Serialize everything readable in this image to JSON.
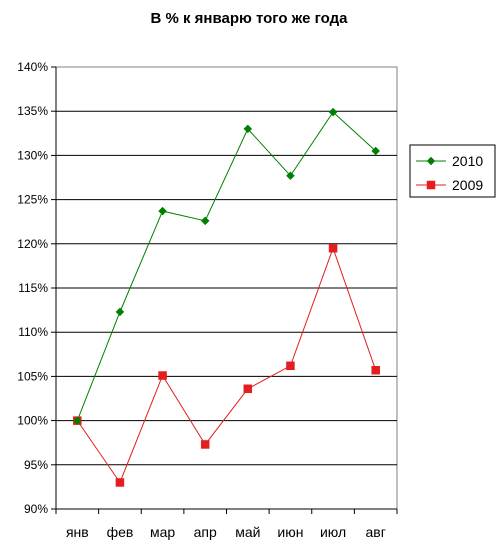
{
  "chart_data": {
    "type": "line",
    "title": "В % к январю того же года",
    "xlabel": "",
    "ylabel": "",
    "categories": [
      "янв",
      "фев",
      "мар",
      "апр",
      "май",
      "июн",
      "июл",
      "авг"
    ],
    "ylim": [
      90,
      140
    ],
    "ytick_step": 5,
    "ytick_labels": [
      "90%",
      "95%",
      "100%",
      "105%",
      "110%",
      "115%",
      "120%",
      "125%",
      "130%",
      "135%",
      "140%"
    ],
    "grid": true,
    "legend_position": "right",
    "series": [
      {
        "name": "2010",
        "color": "#008000",
        "marker": "diamond",
        "values": [
          100.0,
          112.3,
          123.7,
          122.6,
          133.0,
          127.7,
          134.9,
          130.5
        ]
      },
      {
        "name": "2009",
        "color": "#e41e1e",
        "marker": "square",
        "values": [
          100.0,
          93.0,
          105.1,
          97.3,
          103.6,
          106.2,
          119.5,
          105.7
        ]
      }
    ]
  }
}
